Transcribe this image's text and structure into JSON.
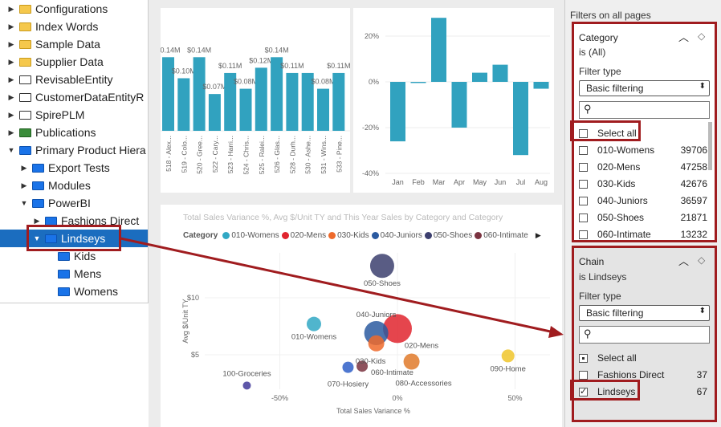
{
  "tree": {
    "items": [
      {
        "label": "Configurations",
        "icon": "folder-yellow",
        "level": 0,
        "expanded": false
      },
      {
        "label": "Index Words",
        "icon": "folder-yellow",
        "level": 0,
        "expanded": false
      },
      {
        "label": "Sample Data",
        "icon": "folder-yellow",
        "level": 0,
        "expanded": false
      },
      {
        "label": "Supplier Data",
        "icon": "folder-yellow",
        "level": 0,
        "expanded": false
      },
      {
        "label": "RevisableEntity",
        "icon": "entity",
        "level": 0,
        "expanded": false
      },
      {
        "label": "CustomerDataEntityR",
        "icon": "entity",
        "level": 0,
        "expanded": false
      },
      {
        "label": "SpirePLM",
        "icon": "entity",
        "level": 0,
        "expanded": false
      },
      {
        "label": "Publications",
        "icon": "publication",
        "level": 0,
        "expanded": false
      },
      {
        "label": "Primary Product Hiera",
        "icon": "folder-blue",
        "level": 0,
        "expanded": true
      },
      {
        "label": "Export Tests",
        "icon": "folder-blue",
        "level": 1,
        "expanded": false
      },
      {
        "label": "Modules",
        "icon": "folder-blue",
        "level": 1,
        "expanded": false
      },
      {
        "label": "PowerBI",
        "icon": "folder-blue",
        "level": 1,
        "expanded": true
      },
      {
        "label": "Fashions Direct",
        "icon": "folder-blue",
        "level": 2,
        "expanded": false
      },
      {
        "label": "Lindseys",
        "icon": "folder-blue",
        "level": 2,
        "expanded": true,
        "selected": true
      },
      {
        "label": "Kids",
        "icon": "folder-blue",
        "level": 3,
        "leaf": true
      },
      {
        "label": "Mens",
        "icon": "folder-blue",
        "level": 3,
        "leaf": true
      },
      {
        "label": "Womens",
        "icon": "folder-blue",
        "level": 3,
        "leaf": true
      }
    ]
  },
  "chart_data": [
    {
      "type": "bar",
      "title": "",
      "categories": [
        "518 - Alex...",
        "519 - Colo...",
        "520 - Gree...",
        "522 - Cary...",
        "523 - Harri...",
        "524 - Chris...",
        "525 - Ralei...",
        "526 - Glas...",
        "528 - Durh...",
        "530 - Ashe...",
        "531 - Wins...",
        "533 - Pine..."
      ],
      "values": [
        0.14,
        0.1,
        0.14,
        0.07,
        0.11,
        0.08,
        0.12,
        0.14,
        0.11,
        0.11,
        0.08,
        0.11
      ],
      "data_labels": [
        "$0.14M",
        "$0.10M",
        "$0.14M",
        "$0.07M",
        "$0.11M",
        "$0.08M",
        "$0.12M",
        "$0.14M",
        "$0.11M",
        "",
        "$0.08M",
        "$0.11M"
      ],
      "color": "#31a2bf"
    },
    {
      "type": "bar",
      "categories": [
        "Jan",
        "Feb",
        "Mar",
        "Apr",
        "May",
        "Jun",
        "Jul",
        "Aug"
      ],
      "values": [
        -26,
        -0.5,
        28,
        -20,
        4,
        7.5,
        -32,
        -3
      ],
      "yticks": [
        "20%",
        "0%",
        "-20%",
        "-40%"
      ],
      "ytick_values": [
        20,
        0,
        -20,
        -40
      ],
      "ylim": [
        -42,
        28
      ],
      "color": "#31a2bf"
    },
    {
      "type": "scatter",
      "title": "Total Sales Variance %, Avg $/Unit TY and This Year Sales by Category and Category",
      "xlabel": "Total Sales Variance %",
      "ylabel": "Avg $/Unit TY",
      "xticks": [
        "-50%",
        "0%",
        "50%"
      ],
      "xtick_values": [
        -50,
        0,
        50
      ],
      "yticks": [
        "$10",
        "$5"
      ],
      "ytick_values": [
        10,
        5
      ],
      "xlim": [
        -75,
        62
      ],
      "ylim": [
        1,
        15
      ],
      "legend_title": "Category",
      "legend": [
        {
          "name": "010-Womens",
          "color": "#31a8c4"
        },
        {
          "name": "020-Mens",
          "color": "#e0242e"
        },
        {
          "name": "030-Kids",
          "color": "#ee6a2b"
        },
        {
          "name": "040-Juniors",
          "color": "#2b5aa0"
        },
        {
          "name": "050-Shoes",
          "color": "#3c3f6e"
        },
        {
          "name": "060-Intimate",
          "color": "#7a3340"
        }
      ],
      "points": [
        {
          "name": "050-Shoes",
          "x": -6.5,
          "y": 12.8,
          "size": 15,
          "color": "#3c3f6e"
        },
        {
          "name": "010-Womens",
          "x": -35.5,
          "y": 7.7,
          "size": 9,
          "color": "#31a8c4"
        },
        {
          "name": "020-Mens",
          "x": 0,
          "y": 7.3,
          "size": 18,
          "color": "#e0242e"
        },
        {
          "name": "040-Juniors",
          "x": -9,
          "y": 6.9,
          "size": 15,
          "color": "#2b5aa0"
        },
        {
          "name": "030-Kids",
          "x": -9,
          "y": 6.0,
          "size": 10,
          "color": "#ee6a2b"
        },
        {
          "name": "070-Hosiery",
          "x": -21,
          "y": 3.9,
          "size": 7,
          "color": "#2f5fc8"
        },
        {
          "name": "060-Intimate",
          "x": -15,
          "y": 4.0,
          "size": 7,
          "color": "#7a3340"
        },
        {
          "name": "080-Accessories",
          "x": 6,
          "y": 4.4,
          "size": 10,
          "color": "#e07a2a"
        },
        {
          "name": "090-Home",
          "x": 47,
          "y": 4.9,
          "size": 8,
          "color": "#f0c62a"
        },
        {
          "name": "100-Groceries",
          "x": -64,
          "y": 2.3,
          "size": 5,
          "color": "#42399a"
        }
      ]
    }
  ],
  "filters": {
    "header": "Filters on all pages",
    "category": {
      "title": "Category",
      "subtitle": "is (All)",
      "filter_type_label": "Filter type",
      "filter_type": "Basic filtering",
      "select_all": "Select all",
      "items": [
        {
          "label": "010-Womens",
          "count": "39706"
        },
        {
          "label": "020-Mens",
          "count": "47258"
        },
        {
          "label": "030-Kids",
          "count": "42676"
        },
        {
          "label": "040-Juniors",
          "count": "36597"
        },
        {
          "label": "050-Shoes",
          "count": "21871"
        },
        {
          "label": "060-Intimate",
          "count": "13232"
        }
      ]
    },
    "chain": {
      "title": "Chain",
      "subtitle": "is Lindseys",
      "filter_type_label": "Filter type",
      "filter_type": "Basic filtering",
      "select_all": "Select all",
      "items": [
        {
          "label": "Fashions Direct",
          "count": "37",
          "checked": false
        },
        {
          "label": "Lindseys",
          "count": "67",
          "checked": true
        }
      ]
    }
  }
}
